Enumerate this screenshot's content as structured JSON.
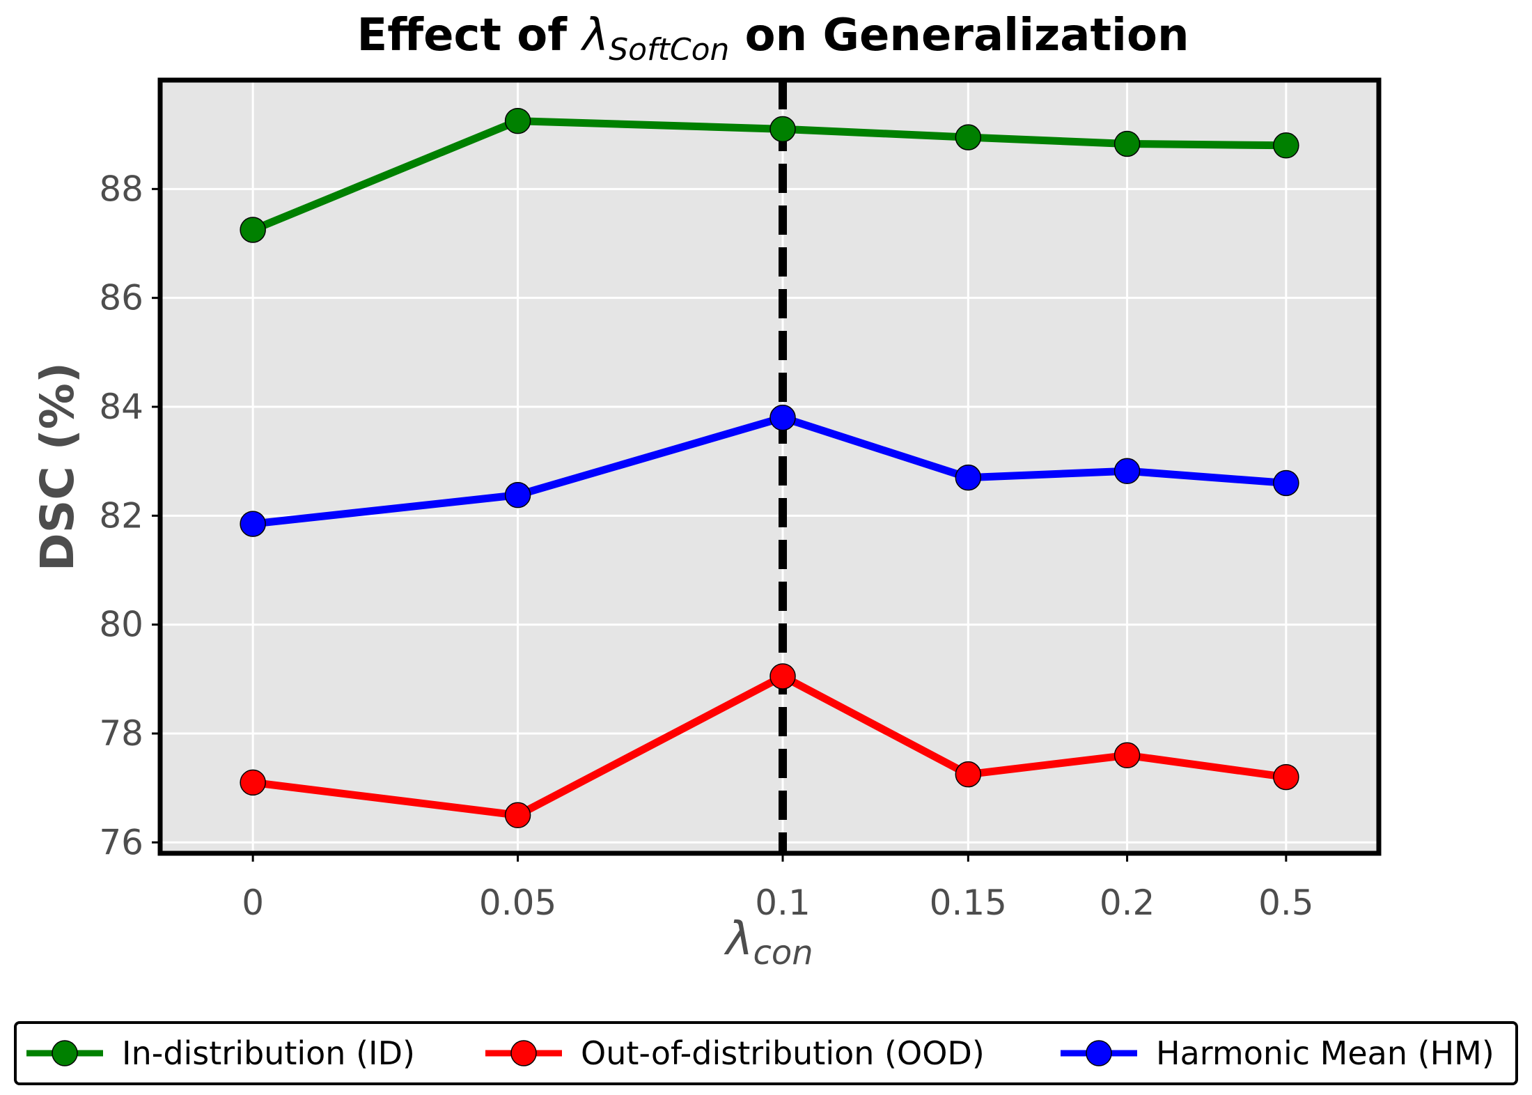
{
  "colors": {
    "plot_background": "#e5e5e5",
    "grid": "#ffffff",
    "frame": "#000000",
    "marker_line": "#000000",
    "tick_text": "#4d4d4d"
  },
  "chart_data": {
    "type": "line",
    "title": {
      "main_before": "Effect of ",
      "symbol": "λ",
      "subscript": "SoftCon",
      "main_after": " on Generalization"
    },
    "xlabel": {
      "symbol": "λ",
      "subscript": "con"
    },
    "ylabel": "DSC (%)",
    "categories": [
      "0",
      "0.05",
      "0.1",
      "0.15",
      "0.2",
      "0.5"
    ],
    "x_positions": [
      0,
      0.05,
      0.1,
      0.135,
      0.165,
      0.195
    ],
    "ylim": [
      75.8,
      90.0
    ],
    "yticks": [
      76,
      78,
      80,
      82,
      84,
      86,
      88
    ],
    "grid": true,
    "series": [
      {
        "name": "In-distribution (ID)",
        "color": "#008000",
        "values": [
          87.25,
          89.25,
          89.1,
          88.95,
          88.83,
          88.8
        ]
      },
      {
        "name": "Out-of-distribution (OOD)",
        "color": "#ff0000",
        "values": [
          77.1,
          76.5,
          79.05,
          77.25,
          77.6,
          77.2
        ]
      },
      {
        "name": "Harmonic Mean (HM)",
        "color": "#0000ff",
        "values": [
          81.85,
          82.38,
          83.8,
          82.7,
          82.82,
          82.6
        ]
      }
    ],
    "reference_line": {
      "x": 0.1,
      "style": "dashed",
      "color": "#000000"
    },
    "legend": {
      "placement": "bottom",
      "columns": 3
    }
  }
}
